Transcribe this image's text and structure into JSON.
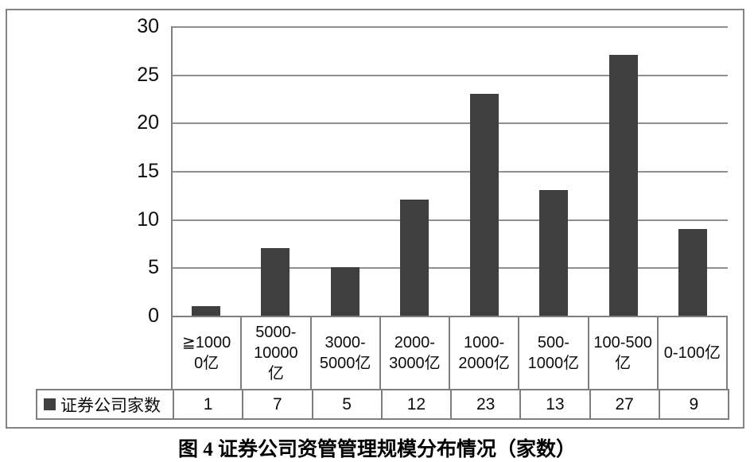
{
  "caption": "图 4 证券公司资管管理规模分布情况（家数）",
  "chart_data": {
    "type": "bar",
    "title": "图 4 证券公司资管管理规模分布情况（家数）",
    "series_name": "证券公司家数",
    "legend_label": "证券公司家数",
    "categories": [
      "≧10000亿",
      "5000-10000亿",
      "3000-5000亿",
      "2000-3000亿",
      "1000-2000亿",
      "500-1000亿",
      "100-500亿",
      "0-100亿"
    ],
    "categories_display": [
      "≧1000\n0亿",
      "5000-\n10000\n亿",
      "3000-\n5000亿",
      "2000-\n3000亿",
      "1000-\n2000亿",
      "500-\n1000亿",
      "100-500\n亿",
      "0-100亿"
    ],
    "values": [
      1,
      7,
      5,
      12,
      23,
      13,
      27,
      9
    ],
    "yticks": [
      30,
      25,
      20,
      15,
      10,
      5,
      0
    ],
    "ylim": [
      0,
      30
    ],
    "xlabel": "",
    "ylabel": "",
    "grid": true,
    "legend_position": "data-table-left",
    "bar_color": "#3f3f3f",
    "gridline_color": "#8f8f8f",
    "border_color": "#7f7f7f"
  }
}
